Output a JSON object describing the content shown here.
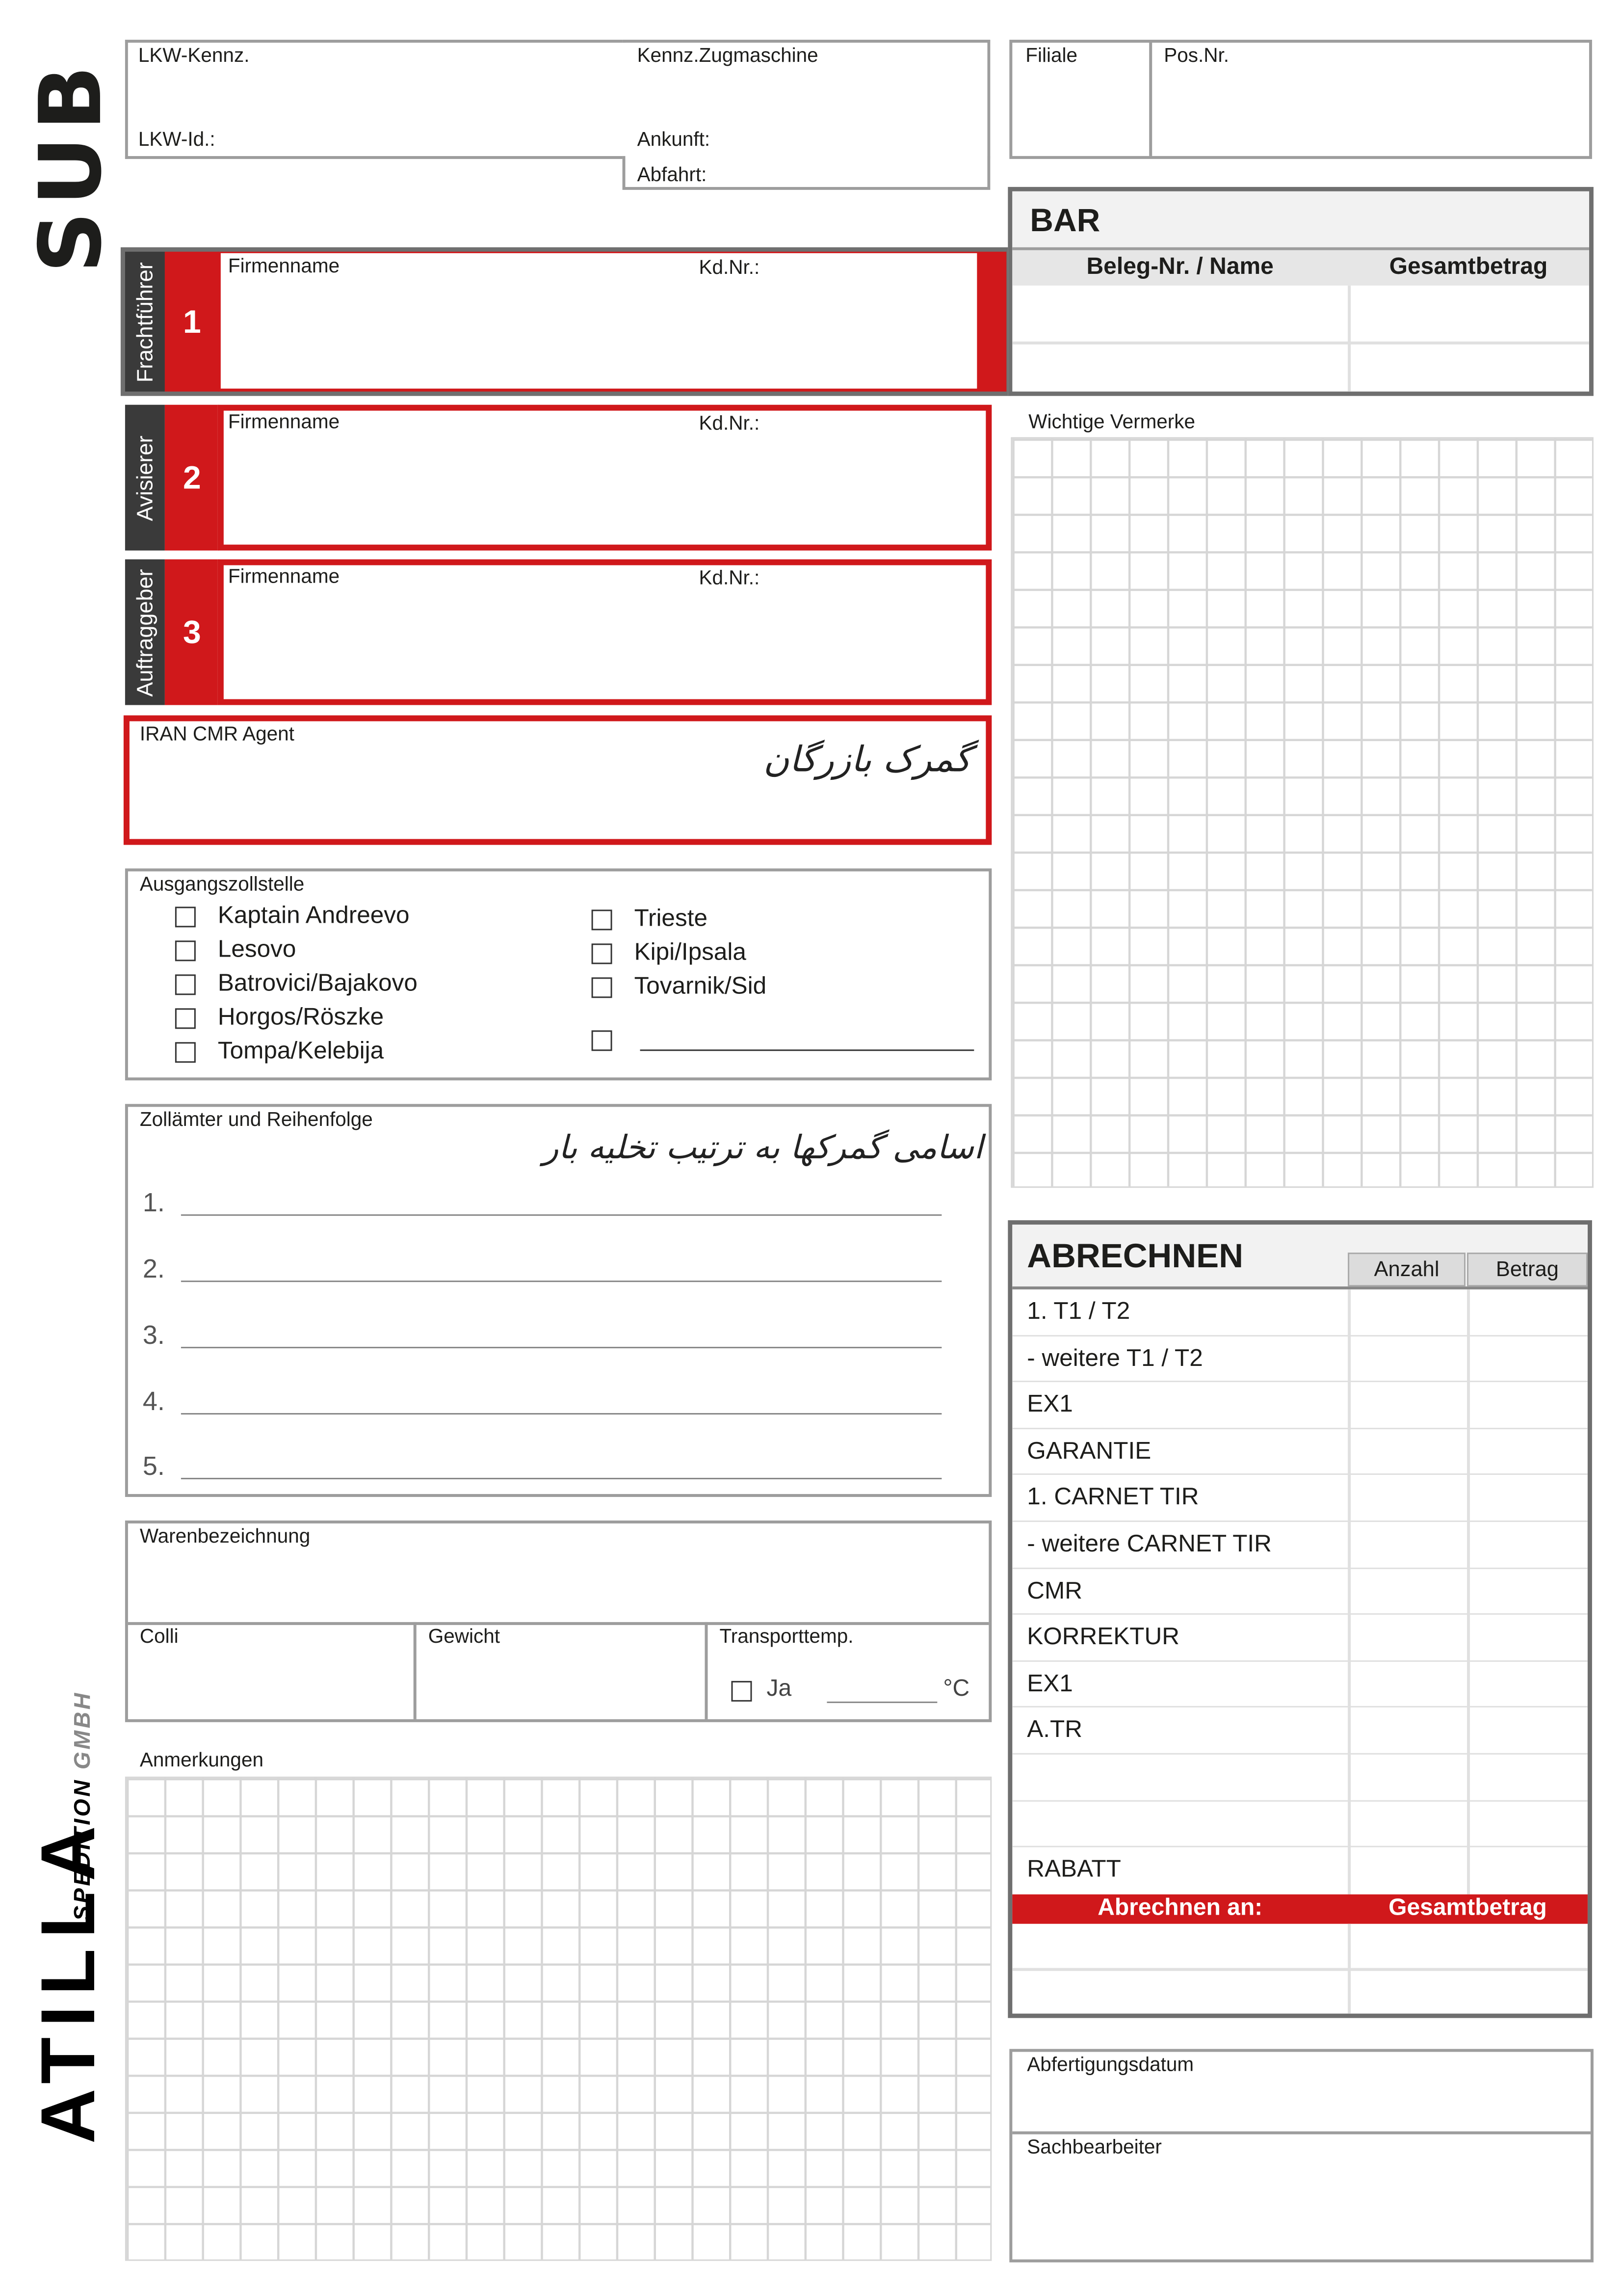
{
  "brand": {
    "sub": "SUB",
    "logo_main": "ATILLA",
    "logo_sub1": "SPEDITION",
    "logo_sub2": "GMBH",
    "accent": "#d0181b",
    "dark": "#3a3a3a"
  },
  "header": {
    "lkw_kennz": "LKW-Kennz.",
    "kennz_zug": "Kennz.Zugmaschine",
    "lkw_id": "LKW-Id.:",
    "ankunft": "Ankunft:",
    "abfahrt": "Abfahrt:",
    "filiale": "Filiale",
    "pos_nr": "Pos.Nr."
  },
  "parties": [
    {
      "role": "Frachtführer",
      "number": "1",
      "firm": "Firmenname",
      "kd": "Kd.Nr.:"
    },
    {
      "role": "Avisierer",
      "number": "2",
      "firm": "Firmenname",
      "kd": "Kd.Nr.:"
    },
    {
      "role": "Auftraggeber",
      "number": "3",
      "firm": "Firmenname",
      "kd": "Kd.Nr.:"
    }
  ],
  "agent": {
    "label": "IRAN CMR Agent",
    "handwritten": "گمرک بازرگان"
  },
  "ausgang": {
    "label": "Ausgangszollstelle",
    "left": [
      "Kaptain Andreevo",
      "Lesovo",
      "Batrovici/Bajakovo",
      "Horgos/Röszke",
      "Tompa/Kelebija"
    ],
    "right": [
      "Trieste",
      "Kipi/Ipsala",
      "Tovarnik/Sid"
    ]
  },
  "zoll": {
    "label": "Zollämter und Reihenfolge",
    "handwritten": "اسامی گمرکها به ترتیب تخلیه بار",
    "lines": [
      "1.",
      "2.",
      "3.",
      "4.",
      "5."
    ]
  },
  "ware": {
    "label": "Warenbezeichnung",
    "colli": "Colli",
    "gewicht": "Gewicht",
    "temp": "Transporttemp.",
    "ja": "Ja",
    "unit": "°C"
  },
  "anmerkungen": "Anmerkungen",
  "bar": {
    "title": "BAR",
    "col1": "Beleg-Nr. / Name",
    "col2": "Gesamtbetrag"
  },
  "vermerke": "Wichtige Vermerke",
  "abrechnen": {
    "title": "ABRECHNEN",
    "col_anzahl": "Anzahl",
    "col_betrag": "Betrag",
    "rows": [
      "1. T1 / T2",
      " - weitere T1 / T2",
      "EX1",
      "GARANTIE",
      "1. CARNET TIR",
      " - weitere CARNET TIR",
      "CMR",
      "KORREKTUR",
      "EX1",
      "A.TR",
      "",
      "",
      "RABATT"
    ],
    "footer_left": "Abrechnen an:",
    "footer_right": "Gesamtbetrag"
  },
  "abfertigung": {
    "datum": "Abfertigungsdatum",
    "sachbearbeiter": "Sachbearbeiter"
  }
}
